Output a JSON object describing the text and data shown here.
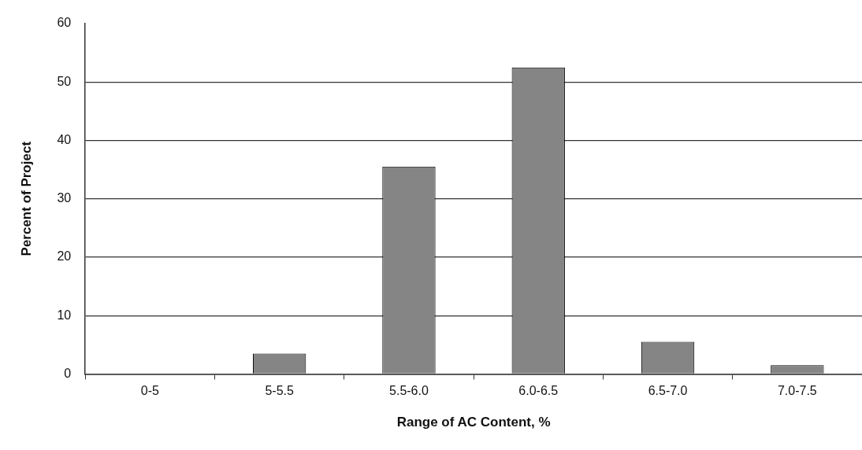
{
  "chart_data": {
    "type": "bar",
    "xlabel": "Range of AC Content, %",
    "ylabel": "Percent of Project",
    "categories": [
      "0-5",
      "5-5.5",
      "5.5-6.0",
      "6.0-6.5",
      "6.5-7.0",
      "7.0-7.5"
    ],
    "values": [
      0,
      3.5,
      35.5,
      52.5,
      5.5,
      1.5
    ],
    "color": "#858585",
    "ylim": [
      0,
      60
    ],
    "yticks": [
      0,
      10,
      20,
      30,
      40,
      50,
      60
    ],
    "grid": "y",
    "legend": false
  }
}
